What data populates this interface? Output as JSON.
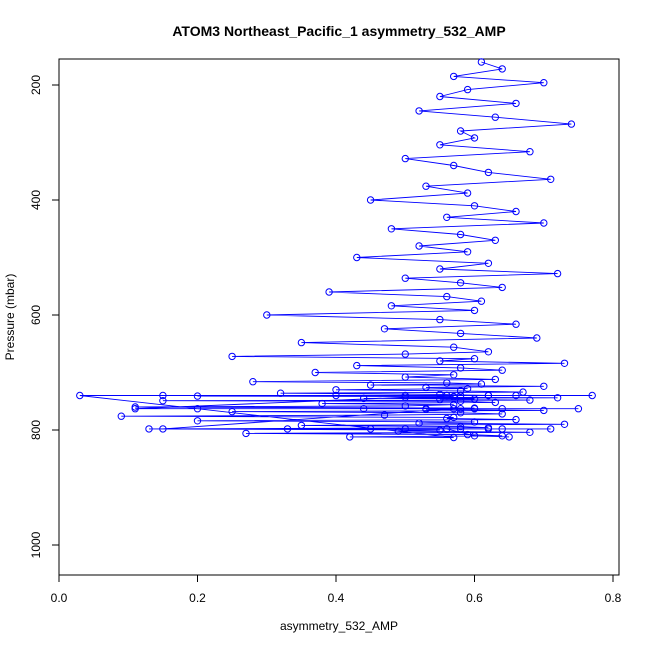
{
  "chart_data": {
    "type": "scatter",
    "title": "ATOM3 Northeast_Pacific_1 asymmetry_532_AMP",
    "xlabel": "asymmetry_532_AMP",
    "ylabel": "Pressure (mbar)",
    "xlim": [
      0.0,
      0.8
    ],
    "ylim": [
      1050,
      150
    ],
    "y_reversed": true,
    "x_ticks": [
      0.0,
      0.2,
      0.4,
      0.6,
      0.8
    ],
    "x_tick_labels": [
      "0.0",
      "0.2",
      "0.4",
      "0.6",
      "0.8"
    ],
    "y_ticks": [
      200,
      400,
      600,
      800,
      1000
    ],
    "y_tick_labels": [
      "200",
      "400",
      "600",
      "800",
      "1000"
    ],
    "grid": false,
    "legend": "none",
    "color": "#0000ff",
    "marker": "open-circle",
    "connected_by_lines": true,
    "series": [
      {
        "x": [
          0.61,
          0.64,
          0.57,
          0.7,
          0.59,
          0.55,
          0.66,
          0.52,
          0.63,
          0.74,
          0.58,
          0.6,
          0.55,
          0.68,
          0.5,
          0.57,
          0.62,
          0.71,
          0.53,
          0.59,
          0.45,
          0.6,
          0.66,
          0.56,
          0.7,
          0.48,
          0.58,
          0.63,
          0.52,
          0.59,
          0.43,
          0.62,
          0.55,
          0.72,
          0.5,
          0.58,
          0.64,
          0.39,
          0.56,
          0.61,
          0.48,
          0.6,
          0.3,
          0.55,
          0.66,
          0.47,
          0.58,
          0.69,
          0.35,
          0.57,
          0.62,
          0.5,
          0.25,
          0.6,
          0.55,
          0.73,
          0.43,
          0.58,
          0.64,
          0.37,
          0.57,
          0.5,
          0.63,
          0.28,
          0.56,
          0.61,
          0.45,
          0.7,
          0.53,
          0.59,
          0.4,
          0.58,
          0.67,
          0.32,
          0.55,
          0.62,
          0.2,
          0.57,
          0.5,
          0.72,
          0.44,
          0.6,
          0.55,
          0.68,
          0.15,
          0.58,
          0.63,
          0.38,
          0.57,
          0.5,
          0.11,
          0.6,
          0.53,
          0.7,
          0.25,
          0.58,
          0.64,
          0.47,
          0.09,
          0.57,
          0.56,
          0.66,
          0.2,
          0.6,
          0.52,
          0.73,
          0.35,
          0.58,
          0.62,
          0.13,
          0.55,
          0.49,
          0.68,
          0.27,
          0.59,
          0.64,
          0.42,
          0.57,
          0.03,
          0.62,
          0.5,
          0.77,
          0.15,
          0.58,
          0.66,
          0.4,
          0.56,
          0.11,
          0.6,
          0.53,
          0.75,
          0.2,
          0.58,
          0.64,
          0.44,
          0.57,
          0.15,
          0.62,
          0.5,
          0.71,
          0.33,
          0.58,
          0.64,
          0.45,
          0.56,
          0.6,
          0.65
        ],
        "y": [
          160,
          172,
          185,
          196,
          208,
          220,
          232,
          245,
          256,
          268,
          280,
          292,
          304,
          316,
          328,
          340,
          352,
          364,
          376,
          388,
          400,
          410,
          420,
          430,
          440,
          450,
          460,
          470,
          480,
          490,
          500,
          510,
          520,
          528,
          536,
          544,
          552,
          560,
          568,
          576,
          584,
          592,
          600,
          608,
          616,
          624,
          632,
          640,
          648,
          656,
          664,
          668,
          672,
          676,
          680,
          684,
          688,
          692,
          696,
          700,
          704,
          708,
          712,
          716,
          718,
          720,
          722,
          724,
          726,
          728,
          730,
          732,
          734,
          736,
          738,
          740,
          741,
          742,
          743,
          744,
          745,
          746,
          747,
          748,
          749,
          750,
          752,
          754,
          756,
          758,
          760,
          762,
          764,
          766,
          768,
          770,
          772,
          774,
          776,
          778,
          780,
          782,
          784,
          786,
          788,
          790,
          792,
          794,
          796,
          798,
          800,
          802,
          804,
          806,
          808,
          810,
          812,
          813,
          740,
          740,
          740,
          740,
          740,
          740,
          740,
          740,
          740,
          763,
          763,
          763,
          763,
          763,
          763,
          763,
          763,
          763,
          798,
          798,
          798,
          798,
          798,
          798,
          798,
          798,
          798,
          810,
          812
        ]
      }
    ]
  }
}
